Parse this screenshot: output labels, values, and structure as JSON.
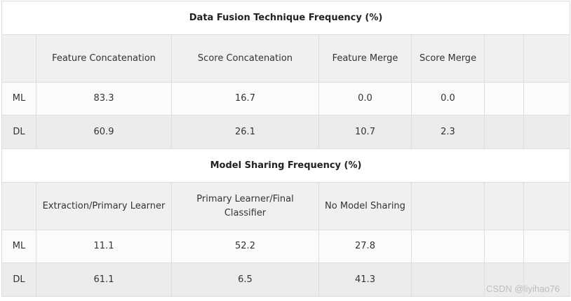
{
  "section1": {
    "title": "Data Fusion Technique Frequency (%)",
    "headers": [
      "",
      "Feature Concatenation",
      "Score Concatenation",
      "Feature Merge",
      "Score Merge",
      "",
      ""
    ],
    "rows": [
      {
        "label": "ML",
        "cells": [
          "83.3",
          "16.7",
          "0.0",
          "0.0",
          "",
          ""
        ]
      },
      {
        "label": "DL",
        "cells": [
          "60.9",
          "26.1",
          "10.7",
          "2.3",
          "",
          ""
        ]
      }
    ]
  },
  "section2": {
    "title": "Model Sharing Frequency (%)",
    "headers": [
      "",
      "Extraction/Primary Learner",
      "Primary Learner/Final Classifier",
      "No Model Sharing",
      "",
      "",
      ""
    ],
    "rows": [
      {
        "label": "ML",
        "cells": [
          "11.1",
          "52.2",
          "27.8",
          "",
          "",
          ""
        ]
      },
      {
        "label": "DL",
        "cells": [
          "61.1",
          "6.5",
          "41.3",
          "",
          "",
          ""
        ]
      }
    ]
  },
  "watermark": "CSDN @liyihao76"
}
